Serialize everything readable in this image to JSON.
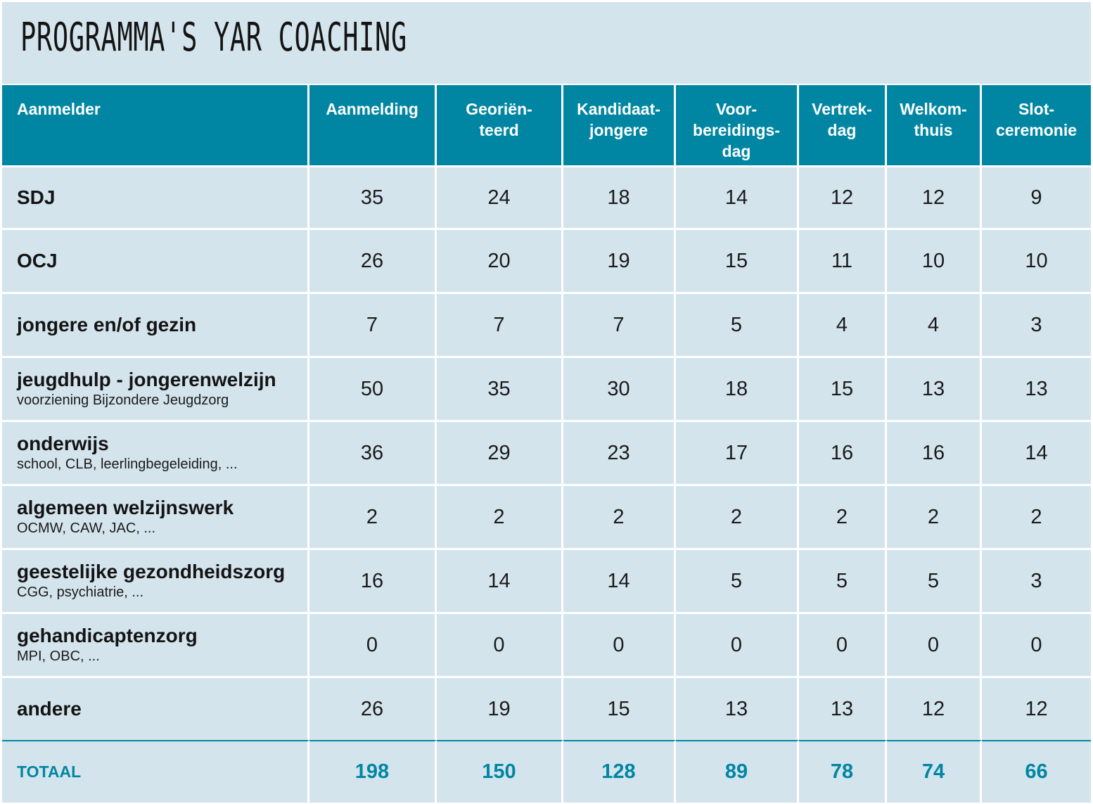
{
  "title": "PROGRAMMA'S YAR COACHING",
  "colors": {
    "header_bg": "#0086a3",
    "cell_bg": "#d4e4ed",
    "total_text": "#0086a3"
  },
  "columns": [
    {
      "key": "aanmelder",
      "label": "Aanmelder"
    },
    {
      "key": "aanmelding",
      "label": "Aanmelding"
    },
    {
      "key": "georienteerd",
      "label": "Georiën-\nteerd"
    },
    {
      "key": "kandidaat",
      "label": "Kandidaat-\njongere"
    },
    {
      "key": "voorbereidingsdag",
      "label": "Voor-\nbereidings-\ndag"
    },
    {
      "key": "vertrekdag",
      "label": "Vertrek-\ndag"
    },
    {
      "key": "welkomthuis",
      "label": "Welkom-\nthuis"
    },
    {
      "key": "slotceremonie",
      "label": "Slot-\nceremonie"
    }
  ],
  "rows": [
    {
      "name": "SDJ",
      "sub": "",
      "values": [
        "35",
        "24",
        "18",
        "14",
        "12",
        "12",
        "9"
      ]
    },
    {
      "name": "OCJ",
      "sub": "",
      "values": [
        "26",
        "20",
        "19",
        "15",
        "11",
        "10",
        "10"
      ]
    },
    {
      "name": "jongere en/of gezin",
      "sub": "",
      "values": [
        "7",
        "7",
        "7",
        "5",
        "4",
        "4",
        "3"
      ]
    },
    {
      "name": "jeugdhulp - jongerenwelzijn",
      "sub": "voorziening Bijzondere Jeugdzorg",
      "values": [
        "50",
        "35",
        "30",
        "18",
        "15",
        "13",
        "13"
      ]
    },
    {
      "name": "onderwijs",
      "sub": "school, CLB, leerlingbegeleiding, ...",
      "values": [
        "36",
        "29",
        "23",
        "17",
        "16",
        "16",
        "14"
      ]
    },
    {
      "name": "algemeen welzijnswerk",
      "sub": "OCMW, CAW, JAC, ...",
      "values": [
        "2",
        "2",
        "2",
        "2",
        "2",
        "2",
        "2"
      ]
    },
    {
      "name": "geestelijke gezondheidszorg",
      "sub": "CGG, psychiatrie, ...",
      "values": [
        "16",
        "14",
        "14",
        "5",
        "5",
        "5",
        "3"
      ]
    },
    {
      "name": "gehandicaptenzorg",
      "sub": "MPI, OBC, ...",
      "values": [
        "0",
        "0",
        "0",
        "0",
        "0",
        "0",
        "0"
      ]
    },
    {
      "name": "andere",
      "sub": "",
      "values": [
        "26",
        "19",
        "15",
        "13",
        "13",
        "12",
        "12"
      ]
    }
  ],
  "total": {
    "label": "TOTAAL",
    "values": [
      "198",
      "150",
      "128",
      "89",
      "78",
      "74",
      "66"
    ]
  }
}
